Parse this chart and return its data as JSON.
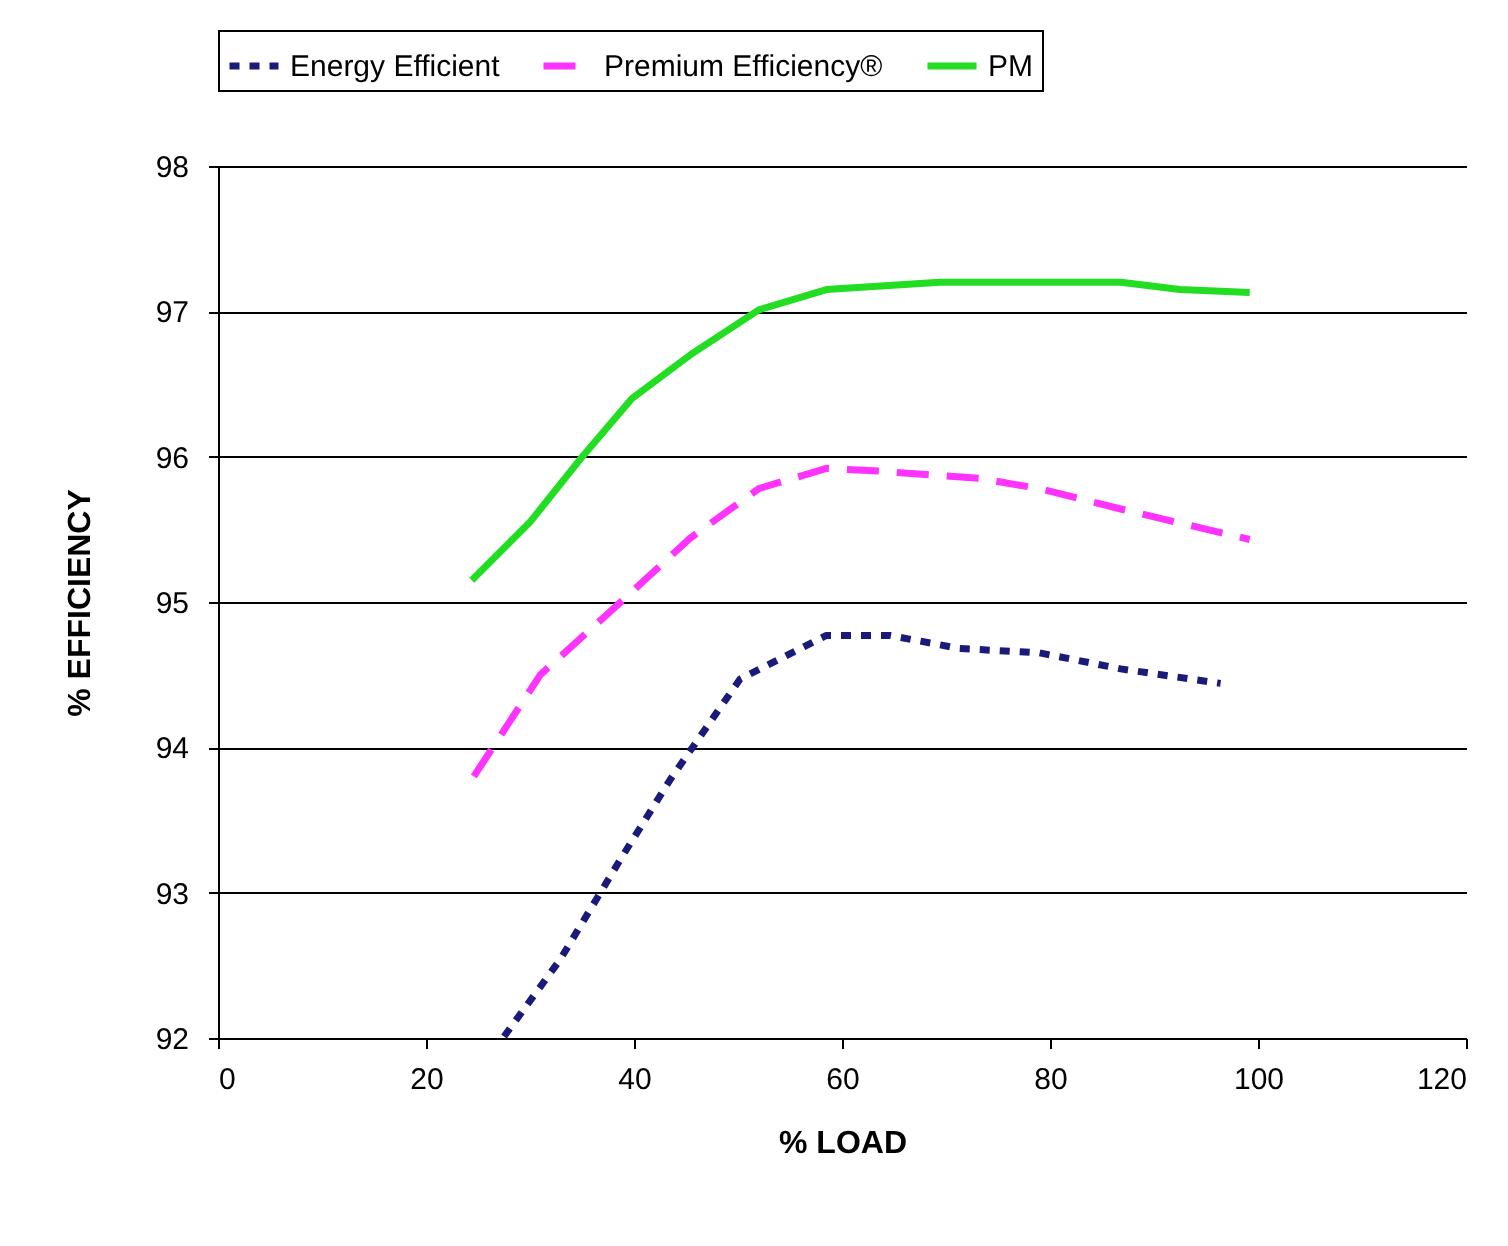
{
  "chart_data": {
    "type": "line",
    "xlabel": "% LOAD",
    "ylabel": "% EFFICIENCY",
    "xlim": [
      0,
      120
    ],
    "xticks": [
      0,
      20,
      40,
      60,
      80,
      100,
      120
    ],
    "ylim": [
      92,
      98
    ],
    "yticks": [
      92,
      93,
      94,
      95,
      96,
      97,
      98
    ],
    "grid": "y",
    "legend": "top",
    "marker": "none",
    "series": [
      {
        "name": "Energy Efficient",
        "color": "#1a1a7a",
        "line_style": "dotted",
        "x": [
          27.5,
          32.9,
          38.7,
          43.5,
          50.2,
          56,
          58.5,
          64.6,
          71.3,
          79,
          86.8,
          96.4
        ],
        "values": [
          92.01,
          92.54,
          93.23,
          93.78,
          94.47,
          94.68,
          94.77,
          94.77,
          94.68,
          94.65,
          94.54,
          94.44
        ]
      },
      {
        "name": "Premium Efficiency®",
        "color": "#ff33ff",
        "line_style": "dashed",
        "x": [
          24.6,
          31,
          39.8,
          45.4,
          52,
          58.5,
          63.7,
          73.3,
          79,
          86.8,
          99.2
        ],
        "values": [
          93.8,
          94.5,
          95.07,
          95.44,
          95.78,
          95.92,
          95.9,
          95.85,
          95.78,
          95.64,
          95.43
        ]
      },
      {
        "name": "PM",
        "color": "#22dd22",
        "line_style": "solid",
        "x": [
          24.4,
          30,
          34.8,
          39.8,
          45.4,
          52,
          58.5,
          69.4,
          86.8,
          92.5,
          99.2
        ],
        "values": [
          95.15,
          95.55,
          95.98,
          96.4,
          96.7,
          97.01,
          97.15,
          97.2,
          97.2,
          97.15,
          97.13
        ]
      }
    ]
  }
}
